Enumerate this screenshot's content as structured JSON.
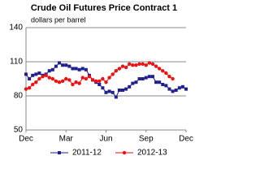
{
  "chart_data": {
    "type": "line",
    "title": "Crude Oil Futures Price Contract 1",
    "ylabel": "dollars per barrel",
    "x": [
      0,
      0.25,
      0.5,
      0.75,
      1,
      1.25,
      1.5,
      1.75,
      2,
      2.25,
      2.5,
      2.75,
      3,
      3.25,
      3.5,
      3.75,
      4,
      4.25,
      4.5,
      4.75,
      5,
      5.25,
      5.5,
      5.75,
      6,
      6.25,
      6.5,
      6.75,
      7,
      7.25,
      7.5,
      7.75,
      8,
      8.25,
      8.5,
      8.75,
      9,
      9.25,
      9.5,
      9.75,
      10,
      10.25,
      10.5,
      10.75,
      11,
      11.25,
      11.5,
      11.75,
      12
    ],
    "xlim": [
      0,
      12
    ],
    "xticks": [
      {
        "value": 0,
        "label": "Dec"
      },
      {
        "value": 3,
        "label": "Mar"
      },
      {
        "value": 6,
        "label": "Jun"
      },
      {
        "value": 9,
        "label": "Sep"
      },
      {
        "value": 12,
        "label": "Dec"
      }
    ],
    "ylim": [
      50,
      140
    ],
    "yticks": [
      50,
      80,
      110,
      140
    ],
    "grid": true,
    "series": [
      {
        "name": "2011-12",
        "color": "#1f1f8f",
        "marker": "square",
        "values": [
          99,
          95,
          98,
          99,
          100,
          98,
          99,
          102,
          103,
          106,
          109,
          107,
          107,
          106,
          104,
          104,
          103,
          104,
          103,
          98,
          94,
          92,
          90,
          87,
          83,
          84,
          83,
          79,
          85,
          85,
          86,
          88,
          91,
          92,
          95,
          95,
          96,
          97,
          97,
          92,
          92,
          90,
          89,
          86,
          84,
          85,
          87,
          88,
          86
        ]
      },
      {
        "name": "2012-13",
        "color": "#ee1111",
        "marker": "circle",
        "values": [
          86,
          87,
          90,
          92,
          95,
          97,
          98,
          96,
          95,
          93,
          92,
          93,
          95,
          94,
          90,
          92,
          91,
          96,
          95,
          97,
          94,
          93,
          93,
          95,
          92,
          96,
          99,
          102,
          104,
          106,
          105,
          108,
          107,
          107,
          108,
          108,
          107,
          109,
          108,
          106,
          104,
          102,
          100,
          97,
          95,
          null,
          null,
          null,
          null
        ]
      }
    ]
  }
}
